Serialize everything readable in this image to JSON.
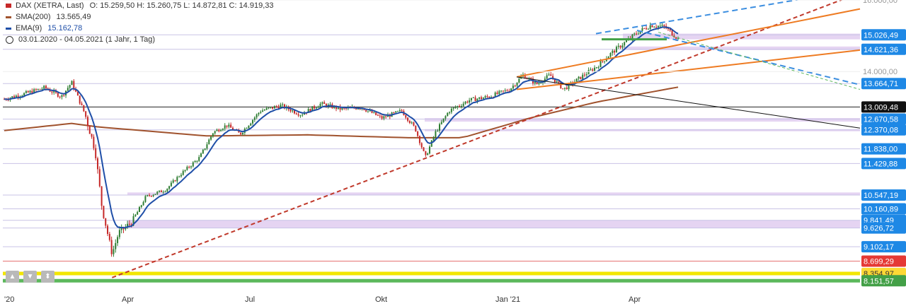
{
  "legend": {
    "instrument": "DAX (XETRA, Last)",
    "ohlc": "O: 15.259,50  H: 15.260,75  L: 14.872,81  C: 14.919,33",
    "sma_label": "SMA(200)",
    "sma_value": "13.565,49",
    "ema_label": "EMA(9)",
    "ema_value": "15.162,78",
    "period": "03.01.2020 - 04.05.2021  (1 Jahr, 1 Tag)"
  },
  "controls": {
    "up": "▲",
    "down": "▼",
    "updown": "⬍"
  },
  "colors": {
    "price_up": "#2e7d32",
    "price_down": "#c62828",
    "ema": "#1f4fa8",
    "sma": "#a0522d",
    "channel": "#ee7b22",
    "trend_dashed": "#c0392b",
    "forecast": "#3c8ee0",
    "zone": "#dcc6ee"
  },
  "chart_data": {
    "type": "candlestick",
    "title": "DAX (XETRA, Last)",
    "ylim": [
      7900,
      16000
    ],
    "x_ticks": [
      "'20",
      "Apr",
      "Jul",
      "Okt",
      "Jan '21",
      "Apr"
    ],
    "y_ticks": [
      "16.000,00",
      "14.000,00"
    ],
    "ohlc_last": {
      "open": 15259.5,
      "high": 15260.75,
      "low": 14872.81,
      "close": 14919.33
    },
    "sma_200_last": 13565.49,
    "ema_9_last": 15162.78,
    "monthly_closes": [
      {
        "date": "2020-01",
        "close": 13000
      },
      {
        "date": "2020-02",
        "close": 12000
      },
      {
        "date": "2020-03",
        "close": 9900
      },
      {
        "date": "2020-04",
        "close": 10900
      },
      {
        "date": "2020-05",
        "close": 11600
      },
      {
        "date": "2020-06",
        "close": 12300
      },
      {
        "date": "2020-07",
        "close": 12800
      },
      {
        "date": "2020-08",
        "close": 12900
      },
      {
        "date": "2020-09",
        "close": 12800
      },
      {
        "date": "2020-10",
        "close": 11550
      },
      {
        "date": "2020-11",
        "close": 13300
      },
      {
        "date": "2020-12",
        "close": 13700
      },
      {
        "date": "2021-01",
        "close": 13450
      },
      {
        "date": "2021-02",
        "close": 13800
      },
      {
        "date": "2021-03",
        "close": 15000
      },
      {
        "date": "2021-04",
        "close": 15150
      }
    ],
    "levels": [
      {
        "label": "15.026,49",
        "value": 15026.49,
        "color": "#1e88e5"
      },
      {
        "label": "14.621,36",
        "value": 14621.36,
        "color": "#1e88e5"
      },
      {
        "label": "13.664,71",
        "value": 13664.71,
        "color": "#1e88e5"
      },
      {
        "label": "13.009,48",
        "value": 13009.48,
        "color": "#111111"
      },
      {
        "label": "12.670,58",
        "value": 12670.58,
        "color": "#1e88e5"
      },
      {
        "label": "12.370,08",
        "value": 12370.08,
        "color": "#1e88e5"
      },
      {
        "label": "11.838,00",
        "value": 11838.0,
        "color": "#1e88e5"
      },
      {
        "label": "11.429,88",
        "value": 11429.88,
        "color": "#1e88e5"
      },
      {
        "label": "10.547,19",
        "value": 10547.19,
        "color": "#1e88e5"
      },
      {
        "label": "10.160,89",
        "value": 10160.89,
        "color": "#1e88e5"
      },
      {
        "label": "9.841,49",
        "value": 9841.49,
        "color": "#1e88e5"
      },
      {
        "label": "9.626,72",
        "value": 9626.72,
        "color": "#1e88e5"
      },
      {
        "label": "9.102,17",
        "value": 9102.17,
        "color": "#1e88e5"
      },
      {
        "label": "8.699,29",
        "value": 8699.29,
        "color": "#e53935"
      },
      {
        "label": "8.354,97",
        "value": 8354.97,
        "color": "#fdd835"
      },
      {
        "label": "8.151,57",
        "value": 8151.57,
        "color": "#43a047"
      }
    ]
  }
}
